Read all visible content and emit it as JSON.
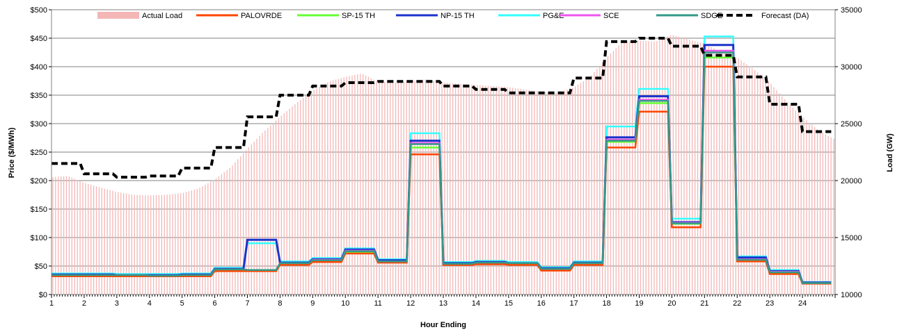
{
  "chart_data": {
    "type": "line",
    "title": "",
    "xlabel": "Hour Ending",
    "ylabel_left": "Price ($/MWh)",
    "ylabel_right": "Load (GW)",
    "xlim": [
      1,
      25
    ],
    "ylim_left": [
      0,
      500
    ],
    "ylim_right": [
      10000,
      35000
    ],
    "x_ticks": [
      "1",
      "2",
      "3",
      "4",
      "5",
      "6",
      "7",
      "8",
      "9",
      "10",
      "11",
      "12",
      "13",
      "14",
      "15",
      "16",
      "17",
      "18",
      "19",
      "20",
      "21",
      "22",
      "23",
      "24"
    ],
    "y_ticks_left": [
      "$0",
      "$50",
      "$100",
      "$150",
      "$200",
      "$250",
      "$300",
      "$350",
      "$400",
      "$450",
      "$500"
    ],
    "y_ticks_right": [
      "10000",
      "15000",
      "20000",
      "25000",
      "30000",
      "35000"
    ],
    "grid": "horizontal",
    "legend_position": "top",
    "load_series": {
      "name": "Actual Load",
      "color": "#f4b6b6",
      "x": [
        1,
        1.5,
        2,
        2.5,
        3,
        3.5,
        4,
        4.5,
        5,
        5.5,
        6,
        6.5,
        7,
        7.5,
        8,
        8.5,
        9,
        9.5,
        10,
        10.5,
        11,
        11.5,
        12,
        12.5,
        13,
        13.5,
        14,
        14.5,
        15,
        15.5,
        16,
        16.5,
        17,
        17.5,
        18,
        18.5,
        19,
        19.5,
        20,
        20.5,
        21,
        21.5,
        22,
        22.5,
        23,
        23.5,
        24,
        24.5,
        25
      ],
      "y": [
        20300,
        20400,
        19800,
        19400,
        19000,
        18750,
        18700,
        18750,
        18900,
        19300,
        20100,
        21200,
        22800,
        24300,
        25600,
        26800,
        27900,
        28700,
        29100,
        29400,
        28700,
        28600,
        28700,
        28900,
        28600,
        28500,
        28400,
        28300,
        28200,
        28000,
        27800,
        27700,
        28200,
        29100,
        30800,
        32200,
        32300,
        32200,
        32800,
        32400,
        32000,
        31300,
        30800,
        29800,
        28600,
        27000,
        25600,
        24400,
        23600
      ]
    },
    "forecast_series": {
      "name": "Forecast (DA)",
      "color": "#000000",
      "values": [
        21500,
        20600,
        20300,
        20400,
        21100,
        22900,
        25600,
        27500,
        28300,
        28600,
        28700,
        28700,
        28300,
        28000,
        27700,
        27700,
        29000,
        32200,
        32500,
        31800,
        31000,
        29100,
        26700,
        24300
      ]
    },
    "series": [
      {
        "name": "PALOVRDE",
        "color": "#ff4500",
        "values": [
          32,
          32,
          32,
          32,
          32,
          41,
          41,
          52,
          57,
          72,
          56,
          246,
          52,
          53,
          52,
          42,
          52,
          258,
          321,
          118,
          400,
          58,
          36,
          19
        ]
      },
      {
        "name": "SP-15 TH",
        "color": "#66ff33",
        "values": [
          33,
          33,
          33,
          33,
          33,
          43,
          42,
          54,
          59,
          74,
          57,
          258,
          53,
          55,
          54,
          44,
          54,
          268,
          336,
          124,
          416,
          59,
          38,
          20
        ]
      },
      {
        "name": "NP-15 TH",
        "color": "#1a33cc",
        "values": [
          35,
          35,
          34,
          34,
          35,
          45,
          96,
          56,
          62,
          79,
          60,
          270,
          55,
          57,
          55,
          46,
          56,
          276,
          348,
          127,
          438,
          65,
          41,
          21
        ]
      },
      {
        "name": "PG&E",
        "color": "#33ffff",
        "values": [
          37,
          37,
          36,
          36,
          37,
          47,
          90,
          58,
          64,
          81,
          62,
          283,
          57,
          59,
          57,
          48,
          58,
          295,
          361,
          133,
          453,
          67,
          43,
          22
        ]
      },
      {
        "name": "SCE",
        "color": "#ee55ee",
        "values": [
          34,
          34,
          34,
          33,
          34,
          44,
          43,
          55,
          61,
          77,
          58,
          266,
          54,
          56,
          55,
          45,
          55,
          272,
          342,
          126,
          428,
          62,
          40,
          20
        ]
      },
      {
        "name": "SDGE",
        "color": "#339988",
        "values": [
          34,
          34,
          34,
          33,
          34,
          44,
          43,
          55,
          60,
          76,
          58,
          264,
          54,
          56,
          55,
          45,
          55,
          270,
          340,
          125,
          425,
          61,
          39,
          20
        ]
      }
    ]
  }
}
